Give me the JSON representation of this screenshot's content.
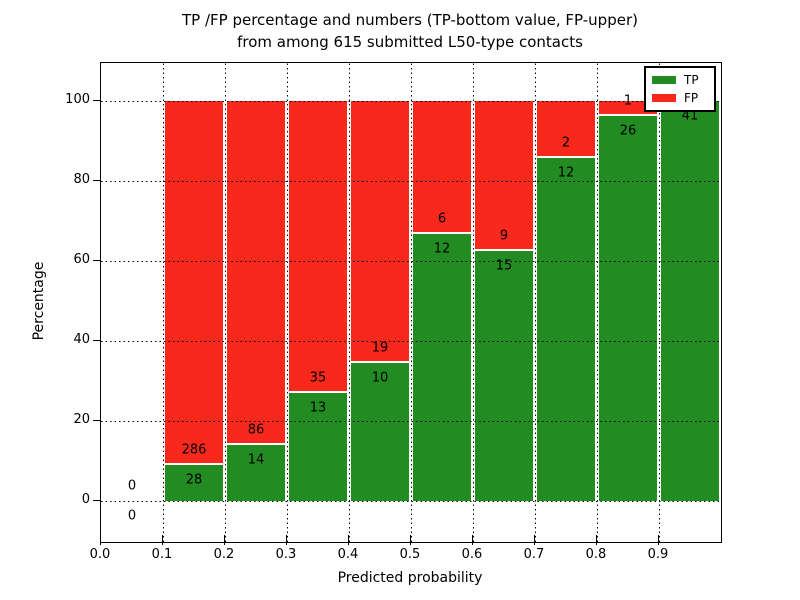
{
  "figure": {
    "title_line1": "TP /FP percentage and numbers (TP-bottom value, FP-upper)",
    "title_line2": "from among 615 submitted L50-type contacts"
  },
  "chart_data": {
    "type": "bar",
    "stacked": true,
    "normalized_to": "100% per bin (stacked TP+FP percentage)",
    "title": "TP /FP percentage and numbers (TP-bottom value, FP-upper) from among 615 submitted L50-type contacts",
    "title_line1": "TP /FP percentage and numbers (TP-bottom value, FP-upper)",
    "title_line2": "from among 615 submitted L50-type contacts",
    "xlabel": "Predicted probability",
    "ylabel": "Percentage",
    "total_contacts": 615,
    "xlim": [
      0.0,
      1.0
    ],
    "ylim": [
      -10.25,
      109.5
    ],
    "bin_width": 0.1,
    "categories": [
      "0.0-0.1",
      "0.1-0.2",
      "0.2-0.3",
      "0.3-0.4",
      "0.4-0.5",
      "0.5-0.6",
      "0.6-0.7",
      "0.7-0.8",
      "0.8-0.9",
      "0.9-1.0"
    ],
    "xtick_labels": [
      "0.0",
      "0.1",
      "0.2",
      "0.3",
      "0.4",
      "0.5",
      "0.6",
      "0.7",
      "0.8",
      "0.9"
    ],
    "yticks": [
      0,
      20,
      40,
      60,
      80,
      100
    ],
    "grid": true,
    "legend_position": "upper right",
    "series": [
      {
        "name": "TP",
        "color": "#228b22",
        "counts": [
          0,
          28,
          14,
          13,
          10,
          12,
          15,
          12,
          26,
          41
        ]
      },
      {
        "name": "FP",
        "color": "#f8281c",
        "counts": [
          0,
          286,
          86,
          35,
          19,
          6,
          9,
          2,
          1,
          0
        ]
      }
    ],
    "tp_percent_per_bin": [
      0,
      8.9,
      14.0,
      27.1,
      34.5,
      66.7,
      62.5,
      85.7,
      96.3,
      100.0
    ]
  }
}
